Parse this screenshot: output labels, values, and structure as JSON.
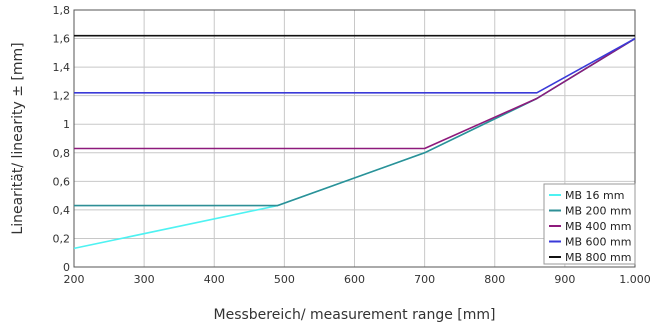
{
  "chart_data": {
    "type": "line",
    "xlabel": "Messbereich/ measurement range [mm]",
    "ylabel": "Linearität/ linearity ± [mm]",
    "xlim": [
      200,
      1000
    ],
    "ylim": [
      0,
      1.8
    ],
    "x_ticks": [
      {
        "value": 200,
        "label": "200"
      },
      {
        "value": 300,
        "label": "300"
      },
      {
        "value": 400,
        "label": "400"
      },
      {
        "value": 500,
        "label": "500"
      },
      {
        "value": 600,
        "label": "600"
      },
      {
        "value": 700,
        "label": "700"
      },
      {
        "value": 800,
        "label": "800"
      },
      {
        "value": 900,
        "label": "900"
      },
      {
        "value": 1000,
        "label": "1.000"
      }
    ],
    "y_ticks": [
      {
        "value": 0,
        "label": "0"
      },
      {
        "value": 0.2,
        "label": "0,2"
      },
      {
        "value": 0.4,
        "label": "0,4"
      },
      {
        "value": 0.6,
        "label": "0,6"
      },
      {
        "value": 0.8,
        "label": "0,8"
      },
      {
        "value": 1.0,
        "label": "1"
      },
      {
        "value": 1.2,
        "label": "1,2"
      },
      {
        "value": 1.4,
        "label": "1,4"
      },
      {
        "value": 1.6,
        "label": "1,6"
      },
      {
        "value": 1.8,
        "label": "1,8"
      }
    ],
    "grid": true,
    "legend_position": "bottom-right",
    "series": [
      {
        "name": "MB 16 mm",
        "color": "#4ef2f2",
        "x": [
          200,
          490,
          700,
          860,
          1000
        ],
        "y": [
          0.13,
          0.43,
          0.8,
          1.18,
          1.6
        ]
      },
      {
        "name": "MB 200 mm",
        "color": "#2e8f96",
        "x": [
          200,
          490,
          700,
          860,
          1000
        ],
        "y": [
          0.43,
          0.43,
          0.8,
          1.18,
          1.6
        ]
      },
      {
        "name": "MB 400 mm",
        "color": "#8e1a7c",
        "x": [
          200,
          700,
          860,
          1000
        ],
        "y": [
          0.83,
          0.83,
          1.18,
          1.6
        ]
      },
      {
        "name": "MB 600 mm",
        "color": "#3a3ad8",
        "x": [
          200,
          860,
          1000
        ],
        "y": [
          1.22,
          1.22,
          1.6
        ]
      },
      {
        "name": "MB 800 mm",
        "color": "#111111",
        "x": [
          200,
          1000
        ],
        "y": [
          1.62,
          1.62
        ]
      }
    ]
  }
}
